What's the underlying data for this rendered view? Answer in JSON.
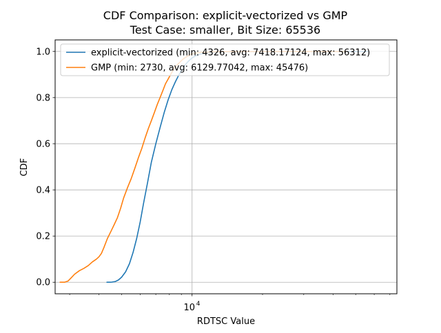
{
  "chart_data": {
    "type": "line",
    "title": "CDF Comparison: explicit-vectorized vs GMP",
    "subtitle": "Test Case: smaller, Bit Size: 65536",
    "xlabel": "RDTSC Value",
    "ylabel": "CDF",
    "xscale": "log",
    "xlim": [
      2600,
      75000
    ],
    "ylim": [
      -0.05,
      1.05
    ],
    "x_ticks": [
      {
        "value": 10000,
        "base": "10",
        "exponent": "4"
      }
    ],
    "x_minor_ticks": [
      3000,
      4000,
      5000,
      6000,
      7000,
      8000,
      9000,
      20000,
      30000,
      40000,
      50000,
      60000,
      70000
    ],
    "y_ticks": [
      "0.0",
      "0.2",
      "0.4",
      "0.6",
      "0.8",
      "1.0"
    ],
    "grid": true,
    "legend_position": "upper-left",
    "series": [
      {
        "name": "explicit-vectorized (min: 4326, avg: 7418.17124, max: 56312)",
        "color": "#1f77b4",
        "x": [
          4326,
          4500,
          4700,
          4850,
          5000,
          5200,
          5400,
          5600,
          5800,
          6000,
          6200,
          6450,
          6700,
          7000,
          7300,
          7600,
          7900,
          8200,
          8500,
          8800,
          9100,
          9400,
          9700,
          10000,
          10400,
          10900,
          11600,
          12500,
          14000,
          17000,
          22000,
          30000,
          45000,
          56312
        ],
        "y": [
          0.0,
          0.0,
          0.003,
          0.01,
          0.022,
          0.045,
          0.08,
          0.13,
          0.19,
          0.26,
          0.34,
          0.43,
          0.52,
          0.6,
          0.67,
          0.735,
          0.79,
          0.835,
          0.87,
          0.9,
          0.925,
          0.945,
          0.96,
          0.972,
          0.982,
          0.989,
          0.993,
          0.996,
          0.998,
          0.999,
          0.9995,
          0.9998,
          0.9999,
          1.0
        ]
      },
      {
        "name": "GMP (min: 2730, avg: 6129.77042, max: 45476)",
        "color": "#ff7f0e",
        "x": [
          2730,
          2850,
          2950,
          3050,
          3150,
          3300,
          3450,
          3600,
          3750,
          3900,
          4000,
          4100,
          4200,
          4350,
          4500,
          4650,
          4800,
          4950,
          5100,
          5300,
          5500,
          5700,
          5900,
          6100,
          6300,
          6500,
          6700,
          6900,
          7100,
          7300,
          7500,
          7700,
          7900,
          8100,
          8300,
          8500,
          8800,
          9100,
          9400,
          9700,
          10000,
          10500,
          11000,
          12000,
          14000,
          17000,
          22000,
          30000,
          45476
        ],
        "y": [
          0.0,
          0.0,
          0.005,
          0.02,
          0.035,
          0.05,
          0.06,
          0.072,
          0.088,
          0.1,
          0.11,
          0.125,
          0.15,
          0.19,
          0.22,
          0.25,
          0.28,
          0.32,
          0.365,
          0.41,
          0.45,
          0.495,
          0.54,
          0.58,
          0.625,
          0.665,
          0.7,
          0.735,
          0.77,
          0.8,
          0.83,
          0.86,
          0.88,
          0.9,
          0.92,
          0.935,
          0.95,
          0.965,
          0.975,
          0.983,
          0.99,
          0.994,
          0.996,
          0.998,
          0.999,
          0.9995,
          0.9998,
          0.9999,
          1.0
        ]
      }
    ]
  }
}
